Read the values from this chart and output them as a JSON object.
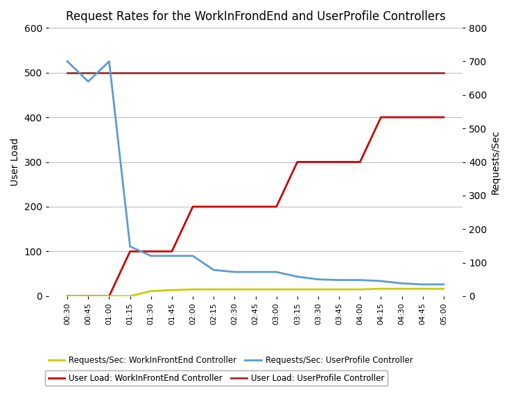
{
  "title": "Request Rates for the WorkInFrondEnd and UserProfile Controllers",
  "x_labels": [
    "00:30",
    "00:45",
    "01:00",
    "01:15",
    "01:30",
    "01:45",
    "02:00",
    "02:15",
    "02:30",
    "02:45",
    "03:00",
    "03:15",
    "03:30",
    "03:45",
    "04:00",
    "04:15",
    "04:30",
    "04:45",
    "05:00"
  ],
  "user_load_wfe": [
    0,
    0,
    0,
    100,
    100,
    100,
    200,
    200,
    200,
    200,
    200,
    300,
    300,
    300,
    300,
    400,
    400,
    400,
    400
  ],
  "user_load_up": [
    500,
    500,
    500,
    500,
    500,
    500,
    500,
    500,
    500,
    500,
    500,
    500,
    500,
    500,
    500,
    500,
    500,
    500,
    500
  ],
  "req_sec_wfe": [
    0,
    0,
    0,
    0,
    15,
    18,
    20,
    20,
    20,
    20,
    20,
    20,
    20,
    20,
    20,
    22,
    22,
    22,
    22
  ],
  "req_sec_up": [
    700,
    640,
    700,
    148,
    120,
    120,
    120,
    78,
    72,
    72,
    72,
    58,
    50,
    48,
    48,
    45,
    38,
    35,
    35
  ],
  "color_wfe_load": "#CC0000",
  "color_up_load": "#993333",
  "color_wfe_req": "#CCCC00",
  "color_up_req": "#5B9BD5",
  "left_ylim": [
    0,
    600
  ],
  "right_ylim": [
    0,
    800
  ],
  "left_yticks": [
    0,
    100,
    200,
    300,
    400,
    500,
    600
  ],
  "right_yticks": [
    0,
    100,
    200,
    300,
    400,
    500,
    600,
    700,
    800
  ],
  "ylabel_left": "User Load",
  "ylabel_right": "Requests/Sec",
  "legend_wfe_load": "User Load: WorkInFrontEnd Controller",
  "legend_up_load": "User Load: UserProfile Controller",
  "legend_wfe_req": "Requests/Sec: WorkInFrontEnd Controller",
  "legend_up_req": "Requests/Sec: UserProfile Controller",
  "bg_color": "#FFFFFF",
  "grid_color": "#C0C0C0",
  "line_width": 2.0
}
